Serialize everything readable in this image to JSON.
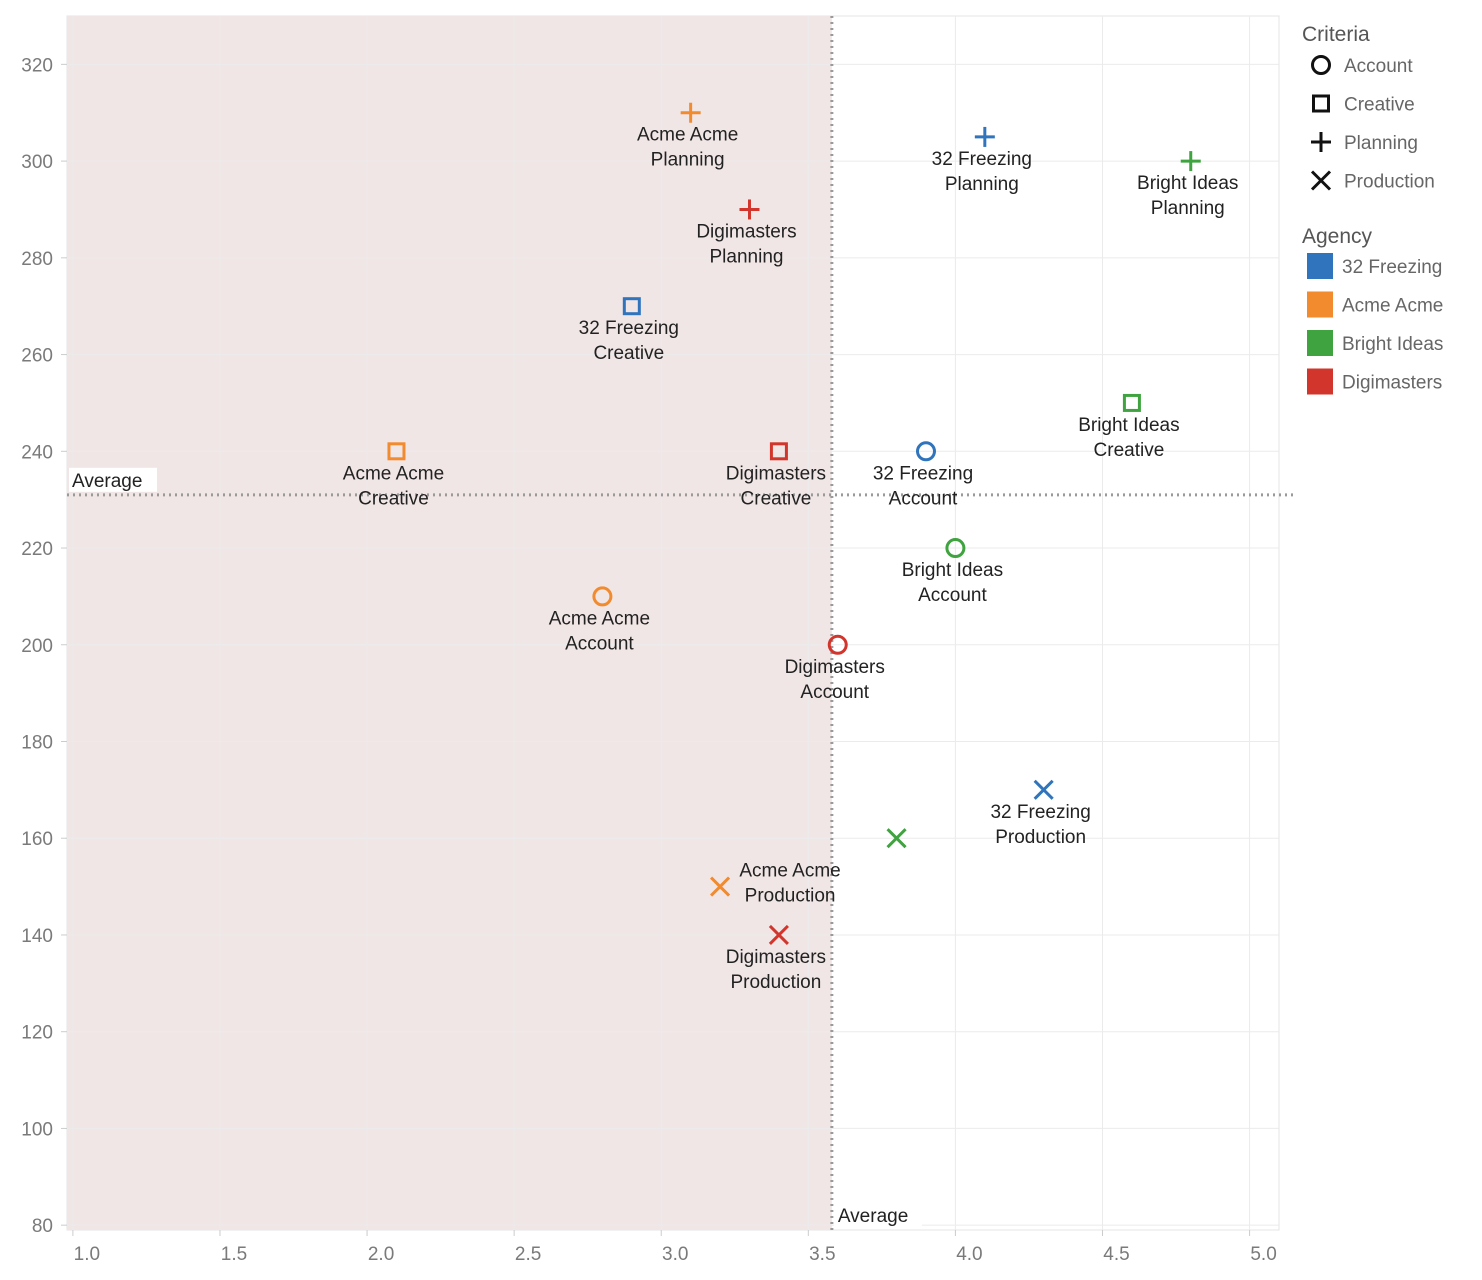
{
  "chart_data": {
    "type": "scatter",
    "title": "",
    "xlabel": "",
    "ylabel": "",
    "xlim": [
      0.98,
      5.1
    ],
    "ylim": [
      79,
      330
    ],
    "x_ticks": [
      "1.0",
      "1.5",
      "2.0",
      "2.5",
      "3.0",
      "3.5",
      "4.0",
      "4.5",
      "5.0"
    ],
    "y_ticks": [
      "80",
      "100",
      "120",
      "140",
      "160",
      "180",
      "200",
      "220",
      "240",
      "260",
      "280",
      "300",
      "320"
    ],
    "reference_lines": {
      "x_average": 3.58,
      "y_average": 231,
      "x_label": "Average",
      "y_label": "Average"
    },
    "shaded_region": "x < average",
    "colors": {
      "32 Freezing": "#2f74bc",
      "Acme Acme": "#f28a2e",
      "Bright Ideas": "#3fa33f",
      "Digimasters": "#d1352b",
      "shade": "#f1e6e6",
      "grid": "#ebebeb"
    },
    "shapes": {
      "Account": "circle",
      "Creative": "square",
      "Planning": "plus",
      "Production": "cross"
    },
    "points": [
      {
        "agency": "Acme Acme",
        "criteria": "Planning",
        "x": 3.1,
        "y": 310,
        "label1": "Acme Acme",
        "label2": "Planning",
        "lpos": "below"
      },
      {
        "agency": "32 Freezing",
        "criteria": "Planning",
        "x": 4.1,
        "y": 305,
        "label1": "32 Freezing",
        "label2": "Planning",
        "lpos": "below"
      },
      {
        "agency": "Bright Ideas",
        "criteria": "Planning",
        "x": 4.8,
        "y": 300,
        "label1": "Bright Ideas",
        "label2": "Planning",
        "lpos": "below"
      },
      {
        "agency": "Digimasters",
        "criteria": "Planning",
        "x": 3.3,
        "y": 290,
        "label1": "Digimasters",
        "label2": "Planning",
        "lpos": "below"
      },
      {
        "agency": "32 Freezing",
        "criteria": "Creative",
        "x": 2.9,
        "y": 270,
        "label1": "32 Freezing",
        "label2": "Creative",
        "lpos": "below"
      },
      {
        "agency": "Bright Ideas",
        "criteria": "Creative",
        "x": 4.6,
        "y": 250,
        "label1": "Bright Ideas",
        "label2": "Creative",
        "lpos": "below"
      },
      {
        "agency": "Acme Acme",
        "criteria": "Creative",
        "x": 2.1,
        "y": 240,
        "label1": "Acme Acme",
        "label2": "Creative",
        "lpos": "below"
      },
      {
        "agency": "Digimasters",
        "criteria": "Creative",
        "x": 3.4,
        "y": 240,
        "label1": "Digimasters",
        "label2": "Creative",
        "lpos": "below"
      },
      {
        "agency": "32 Freezing",
        "criteria": "Account",
        "x": 3.9,
        "y": 240,
        "label1": "32 Freezing",
        "label2": "Account",
        "lpos": "below"
      },
      {
        "agency": "Bright Ideas",
        "criteria": "Account",
        "x": 4.0,
        "y": 220,
        "label1": "Bright Ideas",
        "label2": "Account",
        "lpos": "below"
      },
      {
        "agency": "Acme Acme",
        "criteria": "Account",
        "x": 2.8,
        "y": 210,
        "label1": "Acme Acme",
        "label2": "Account",
        "lpos": "below"
      },
      {
        "agency": "Digimasters",
        "criteria": "Account",
        "x": 3.6,
        "y": 200,
        "label1": "Digimasters",
        "label2": "Account",
        "lpos": "below"
      },
      {
        "agency": "32 Freezing",
        "criteria": "Production",
        "x": 4.3,
        "y": 170,
        "label1": "32 Freezing",
        "label2": "Production",
        "lpos": "below"
      },
      {
        "agency": "Bright Ideas",
        "criteria": "Production",
        "x": 3.8,
        "y": 160,
        "label1": "",
        "label2": "",
        "lpos": "none"
      },
      {
        "agency": "Acme Acme",
        "criteria": "Production",
        "x": 3.2,
        "y": 150,
        "label1": "Acme Acme",
        "label2": "Production",
        "lpos": "right"
      },
      {
        "agency": "Digimasters",
        "criteria": "Production",
        "x": 3.4,
        "y": 140,
        "label1": "Digimasters",
        "label2": "Production",
        "lpos": "below"
      }
    ],
    "legend": {
      "position": "right",
      "criteria_title": "Criteria",
      "criteria_items": [
        "Account",
        "Creative",
        "Planning",
        "Production"
      ],
      "agency_title": "Agency",
      "agency_items": [
        "32 Freezing",
        "Acme Acme",
        "Bright Ideas",
        "Digimasters"
      ]
    }
  }
}
